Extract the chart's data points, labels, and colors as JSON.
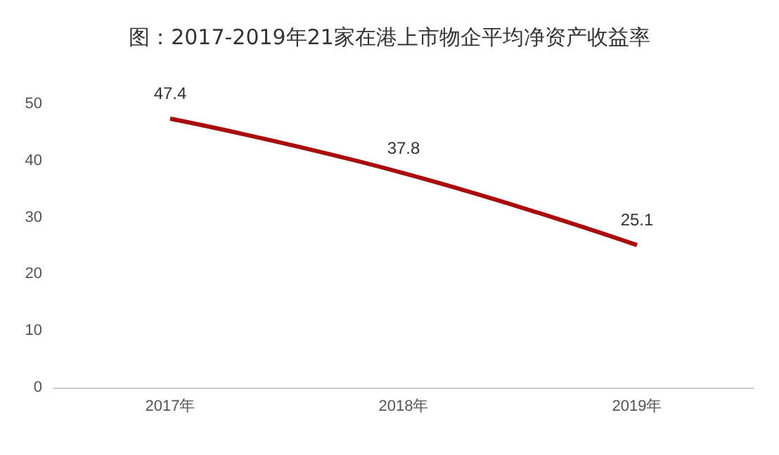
{
  "chart_data": {
    "type": "line",
    "title": "图：2017-2019年21家在港上市物企平均净资产收益率",
    "categories": [
      "2017年",
      "2018年",
      "2019年"
    ],
    "series": [
      {
        "color": "#a80c0c",
        "values": [
          47.4,
          37.8,
          25.1
        ]
      }
    ],
    "ylim": [
      0,
      50
    ],
    "yticks": [
      0,
      10,
      20,
      30,
      40,
      50
    ],
    "grid": false,
    "data_labels": true,
    "marker": "none",
    "line_style": "solid"
  }
}
